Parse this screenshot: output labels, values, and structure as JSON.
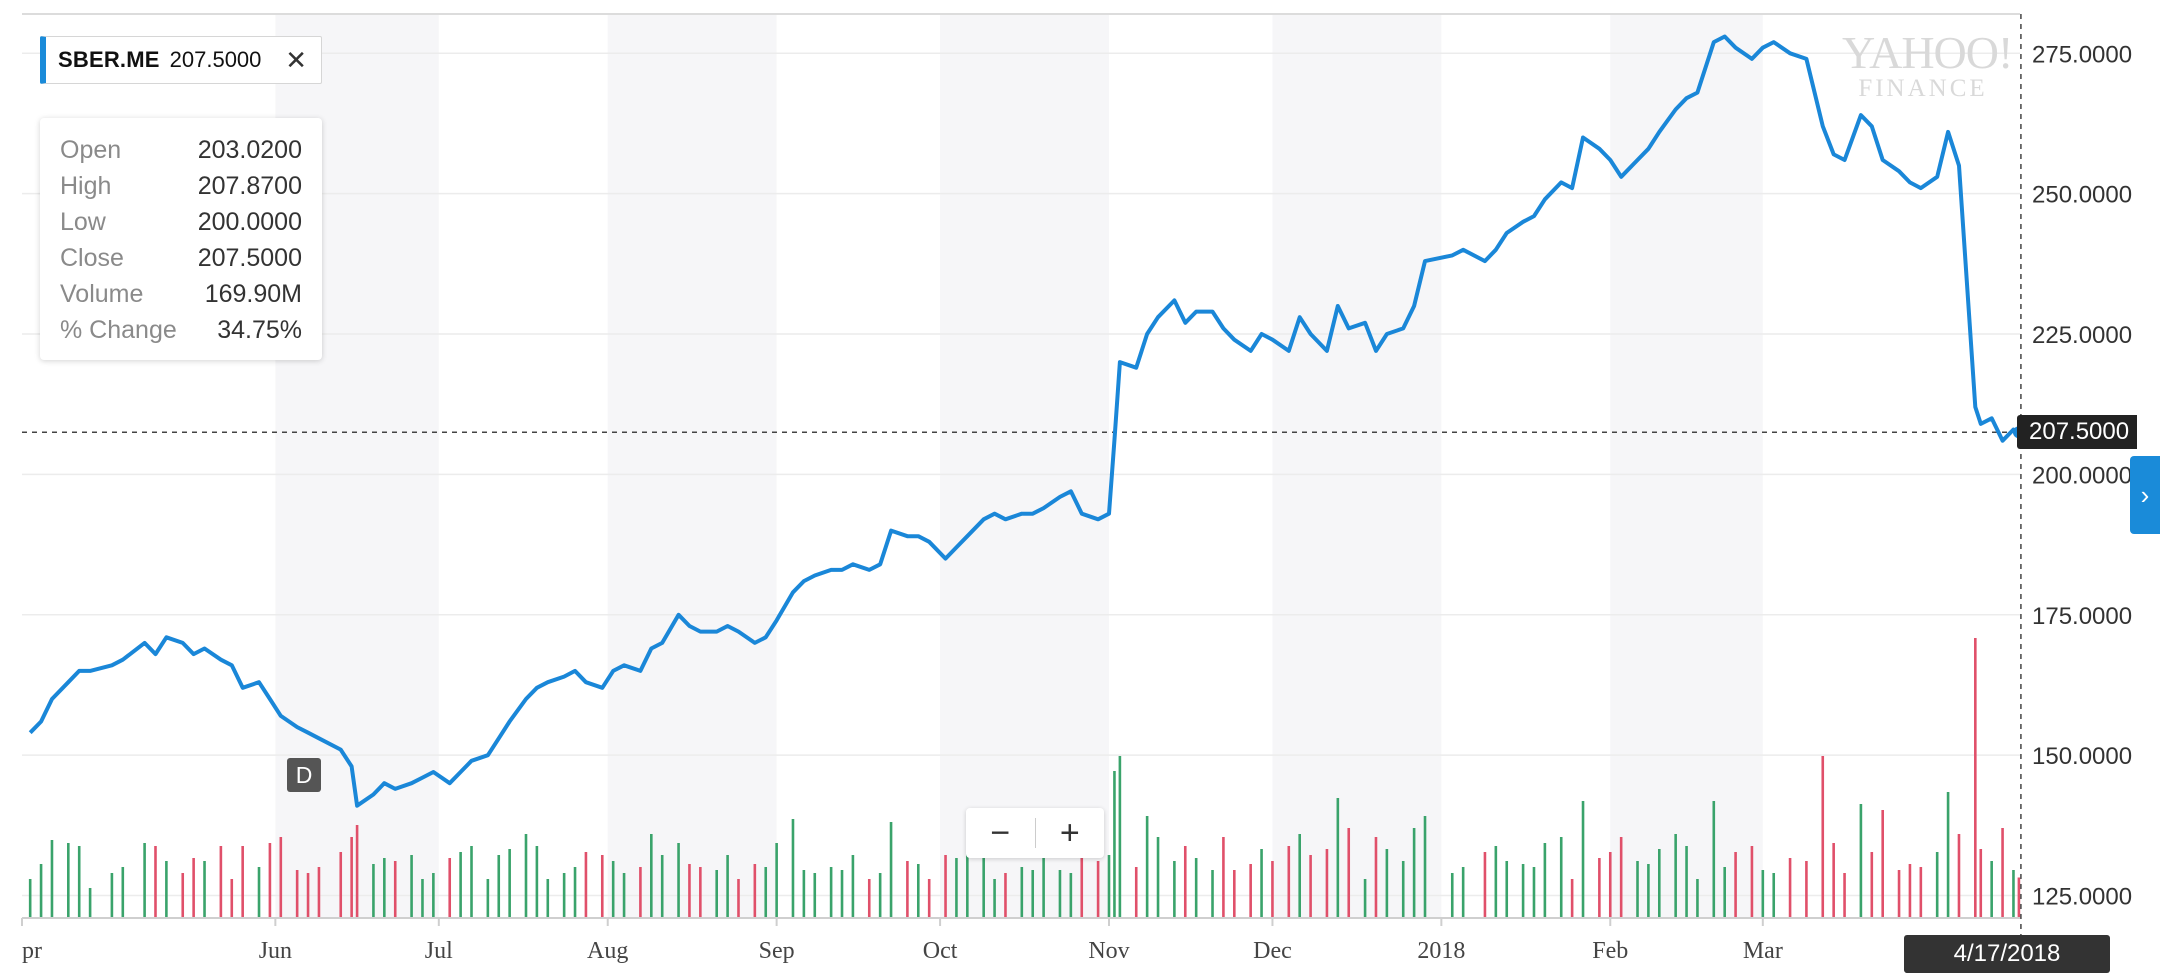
{
  "ticker": {
    "symbol": "SBER.ME",
    "value": "207.5000",
    "close_glyph": "✕",
    "accent": "#1a8bd9"
  },
  "tooltip": {
    "rows": [
      {
        "label": "Open",
        "value": "203.0200"
      },
      {
        "label": "High",
        "value": "207.8700"
      },
      {
        "label": "Low",
        "value": "200.0000"
      },
      {
        "label": "Close",
        "value": "207.5000"
      },
      {
        "label": "Volume",
        "value": "169.90M"
      },
      {
        "label": "% Change",
        "value": "34.75%"
      }
    ]
  },
  "watermark": {
    "line1": "YAHOO!",
    "line2": "FINANCE"
  },
  "zoom": {
    "minus": "−",
    "plus": "+"
  },
  "dividend_marker": "D",
  "current_price_label": "207.5000",
  "cursor_date": "4/17/2018",
  "side_tab_glyph": "›",
  "colors": {
    "line": "#1a87d8",
    "vol_up": "#3aa36b",
    "vol_down": "#e0506a",
    "band": "#f6f6f8",
    "grid": "#ececec"
  },
  "chart_data": {
    "type": "line",
    "title": "",
    "xlabel": "",
    "ylabel": "",
    "ylim": [
      121,
      282
    ],
    "y_ticks": [
      "125.0000",
      "150.0000",
      "175.0000",
      "200.0000",
      "225.0000",
      "250.0000",
      "275.0000"
    ],
    "x_ticks": [
      {
        "label": "Apr",
        "date": "2017-04-01"
      },
      {
        "label": "Jun",
        "date": "2017-06-01"
      },
      {
        "label": "Jul",
        "date": "2017-07-01"
      },
      {
        "label": "Aug",
        "date": "2017-08-01"
      },
      {
        "label": "Sep",
        "date": "2017-09-01"
      },
      {
        "label": "Oct",
        "date": "2017-10-01"
      },
      {
        "label": "Nov",
        "date": "2017-11-01"
      },
      {
        "label": "Dec",
        "date": "2017-12-01"
      },
      {
        "label": "2018",
        "date": "2018-01-01"
      },
      {
        "label": "Feb",
        "date": "2018-02-01"
      },
      {
        "label": "Mar",
        "date": "2018-03-01"
      }
    ],
    "grid": true,
    "reference_value": 207.5,
    "series": [
      {
        "x": [
          "2017-04-17",
          "2017-04-19",
          "2017-04-21",
          "2017-04-24",
          "2017-04-26",
          "2017-04-28",
          "2017-05-02",
          "2017-05-04",
          "2017-05-08",
          "2017-05-10",
          "2017-05-12",
          "2017-05-15",
          "2017-05-17",
          "2017-05-19",
          "2017-05-22",
          "2017-05-24",
          "2017-05-26",
          "2017-05-29",
          "2017-05-31",
          "2017-06-02",
          "2017-06-05",
          "2017-06-07",
          "2017-06-09",
          "2017-06-13",
          "2017-06-15",
          "2017-06-16",
          "2017-06-19",
          "2017-06-21",
          "2017-06-23",
          "2017-06-26",
          "2017-06-28",
          "2017-06-30",
          "2017-07-03",
          "2017-07-05",
          "2017-07-07",
          "2017-07-10",
          "2017-07-12",
          "2017-07-14",
          "2017-07-17",
          "2017-07-19",
          "2017-07-21",
          "2017-07-24",
          "2017-07-26",
          "2017-07-28",
          "2017-07-31",
          "2017-08-02",
          "2017-08-04",
          "2017-08-07",
          "2017-08-09",
          "2017-08-11",
          "2017-08-14",
          "2017-08-16",
          "2017-08-18",
          "2017-08-21",
          "2017-08-23",
          "2017-08-25",
          "2017-08-28",
          "2017-08-30",
          "2017-09-01",
          "2017-09-04",
          "2017-09-06",
          "2017-09-08",
          "2017-09-11",
          "2017-09-13",
          "2017-09-15",
          "2017-09-18",
          "2017-09-20",
          "2017-09-22",
          "2017-09-25",
          "2017-09-27",
          "2017-09-29",
          "2017-10-02",
          "2017-10-04",
          "2017-10-06",
          "2017-10-09",
          "2017-10-11",
          "2017-10-13",
          "2017-10-16",
          "2017-10-18",
          "2017-10-20",
          "2017-10-23",
          "2017-10-25",
          "2017-10-27",
          "2017-10-30",
          "2017-11-01",
          "2017-11-02",
          "2017-11-03",
          "2017-11-06",
          "2017-11-08",
          "2017-11-10",
          "2017-11-13",
          "2017-11-15",
          "2017-11-17",
          "2017-11-20",
          "2017-11-22",
          "2017-11-24",
          "2017-11-27",
          "2017-11-29",
          "2017-12-01",
          "2017-12-04",
          "2017-12-06",
          "2017-12-08",
          "2017-12-11",
          "2017-12-13",
          "2017-12-15",
          "2017-12-18",
          "2017-12-20",
          "2017-12-22",
          "2017-12-25",
          "2017-12-27",
          "2017-12-29",
          "2018-01-03",
          "2018-01-05",
          "2018-01-09",
          "2018-01-11",
          "2018-01-13",
          "2018-01-16",
          "2018-01-18",
          "2018-01-20",
          "2018-01-23",
          "2018-01-25",
          "2018-01-27",
          "2018-01-30",
          "2018-02-01",
          "2018-02-03",
          "2018-02-06",
          "2018-02-08",
          "2018-02-10",
          "2018-02-13",
          "2018-02-15",
          "2018-02-17",
          "2018-02-20",
          "2018-02-22",
          "2018-02-24",
          "2018-02-27",
          "2018-03-01",
          "2018-03-03",
          "2018-03-06",
          "2018-03-09",
          "2018-03-12",
          "2018-03-14",
          "2018-03-16",
          "2018-03-19",
          "2018-03-21",
          "2018-03-23",
          "2018-03-26",
          "2018-03-28",
          "2018-03-30",
          "2018-04-02",
          "2018-04-04",
          "2018-04-06",
          "2018-04-09",
          "2018-04-10",
          "2018-04-12",
          "2018-04-14",
          "2018-04-16",
          "2018-04-17"
        ],
        "values": [
          154,
          156,
          160,
          163,
          165,
          165,
          166,
          167,
          170,
          168,
          171,
          170,
          168,
          169,
          167,
          166,
          162,
          163,
          160,
          157,
          155,
          154,
          153,
          151,
          148,
          141,
          143,
          145,
          144,
          145,
          146,
          147,
          145,
          147,
          149,
          150,
          153,
          156,
          160,
          162,
          163,
          164,
          165,
          163,
          162,
          165,
          166,
          165,
          169,
          170,
          175,
          173,
          172,
          172,
          173,
          172,
          170,
          171,
          174,
          179,
          181,
          182,
          183,
          183,
          184,
          183,
          184,
          190,
          189,
          189,
          188,
          185,
          187,
          189,
          192,
          193,
          192,
          193,
          193,
          194,
          196,
          197,
          193,
          192,
          193,
          206,
          220,
          219,
          225,
          228,
          231,
          227,
          229,
          229,
          226,
          224,
          222,
          225,
          224,
          222,
          228,
          225,
          222,
          230,
          226,
          227,
          222,
          225,
          226,
          230,
          238,
          239,
          240,
          238,
          240,
          243,
          245,
          246,
          249,
          252,
          251,
          260,
          258,
          256,
          253,
          256,
          258,
          261,
          265,
          267,
          268,
          277,
          278,
          276,
          274,
          276,
          277,
          275,
          274,
          262,
          257,
          256,
          264,
          262,
          256,
          254,
          252,
          251,
          253,
          261,
          255,
          212,
          209,
          210,
          206,
          208,
          207.5
        ]
      }
    ]
  }
}
